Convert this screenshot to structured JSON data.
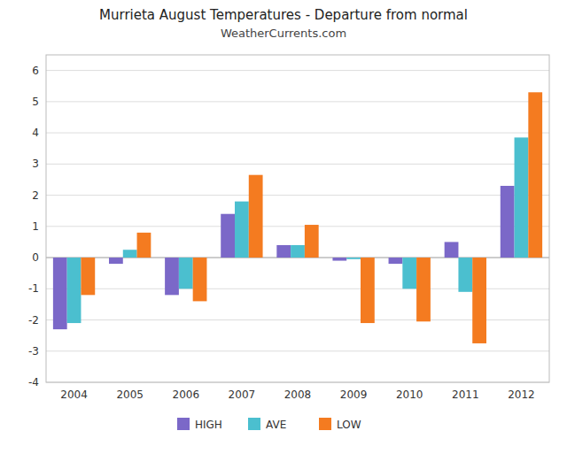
{
  "chart_data": {
    "type": "bar",
    "title": "Murrieta August Temperatures - Departure from normal",
    "subtitle": "WeatherCurrents.com",
    "categories": [
      "2004",
      "2005",
      "2006",
      "2007",
      "2008",
      "2009",
      "2010",
      "2011",
      "2012"
    ],
    "series": [
      {
        "name": "HIGH",
        "color": "#7B68C8",
        "values": [
          -2.3,
          -0.2,
          -1.2,
          1.4,
          0.4,
          -0.1,
          -0.2,
          0.5,
          2.3
        ]
      },
      {
        "name": "AVE",
        "color": "#4BBFCF",
        "values": [
          -2.1,
          0.25,
          -1.0,
          1.8,
          0.4,
          -0.05,
          -1.0,
          -1.1,
          3.85
        ]
      },
      {
        "name": "LOW",
        "color": "#F47B20",
        "values": [
          -1.2,
          0.8,
          -1.4,
          2.65,
          1.05,
          -2.1,
          -2.05,
          -2.75,
          5.3
        ]
      }
    ],
    "ylim": [
      -4,
      6.5
    ],
    "yticks": [
      -4,
      -3,
      -2,
      -1,
      0,
      1,
      2,
      3,
      4,
      5,
      6
    ],
    "grid": true,
    "legend": "bottom"
  }
}
